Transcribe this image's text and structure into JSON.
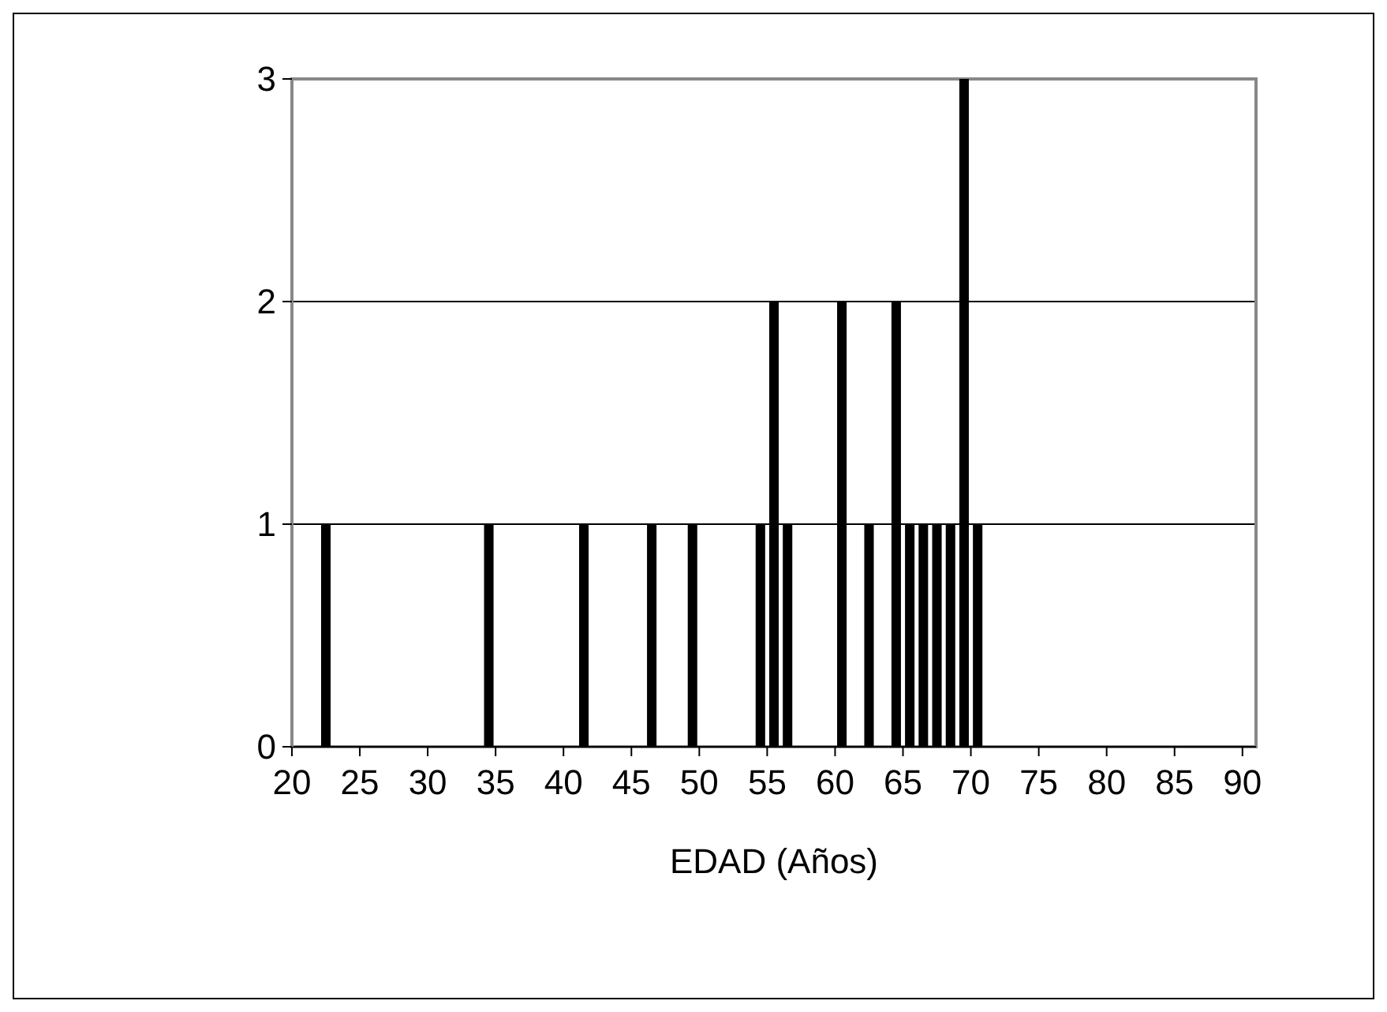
{
  "chart_data": {
    "type": "histogram",
    "xlabel": "EDAD (Años)",
    "color": "#000000",
    "bins": [
      20,
      21,
      22,
      23,
      24,
      25,
      26,
      27,
      28,
      29,
      30,
      31,
      32,
      33,
      34,
      35,
      36,
      37,
      38,
      39,
      40,
      41,
      42,
      43,
      44,
      45,
      46,
      47,
      48,
      49,
      50,
      51,
      52,
      53,
      54,
      55,
      56,
      57,
      58,
      59,
      60,
      61,
      62,
      63,
      64,
      65,
      66,
      67,
      68,
      69,
      70,
      71,
      72,
      73,
      74,
      75,
      76,
      77,
      78,
      79,
      80,
      81,
      82,
      83,
      84,
      85,
      86,
      87,
      88,
      89,
      90,
      91
    ],
    "values": [
      0,
      0,
      1,
      0,
      0,
      0,
      0,
      0,
      0,
      0,
      0,
      0,
      0,
      0,
      1,
      0,
      0,
      0,
      0,
      0,
      0,
      1,
      0,
      0,
      0,
      0,
      1,
      0,
      0,
      1,
      0,
      0,
      0,
      0,
      1,
      2,
      1,
      0,
      0,
      0,
      2,
      0,
      1,
      0,
      2,
      1,
      1,
      1,
      1,
      3,
      1,
      0,
      0,
      0,
      0,
      0,
      0,
      0,
      0,
      0,
      0,
      0,
      0,
      0,
      0,
      0,
      0,
      0,
      0,
      0,
      0
    ],
    "xlim": [
      20,
      91
    ],
    "xticks": [
      20,
      25,
      30,
      35,
      40,
      45,
      50,
      55,
      60,
      65,
      70,
      75,
      80,
      85,
      90
    ],
    "ylim": [
      0,
      3
    ],
    "yticks": [
      0,
      1,
      2,
      3
    ],
    "grid": "y"
  }
}
